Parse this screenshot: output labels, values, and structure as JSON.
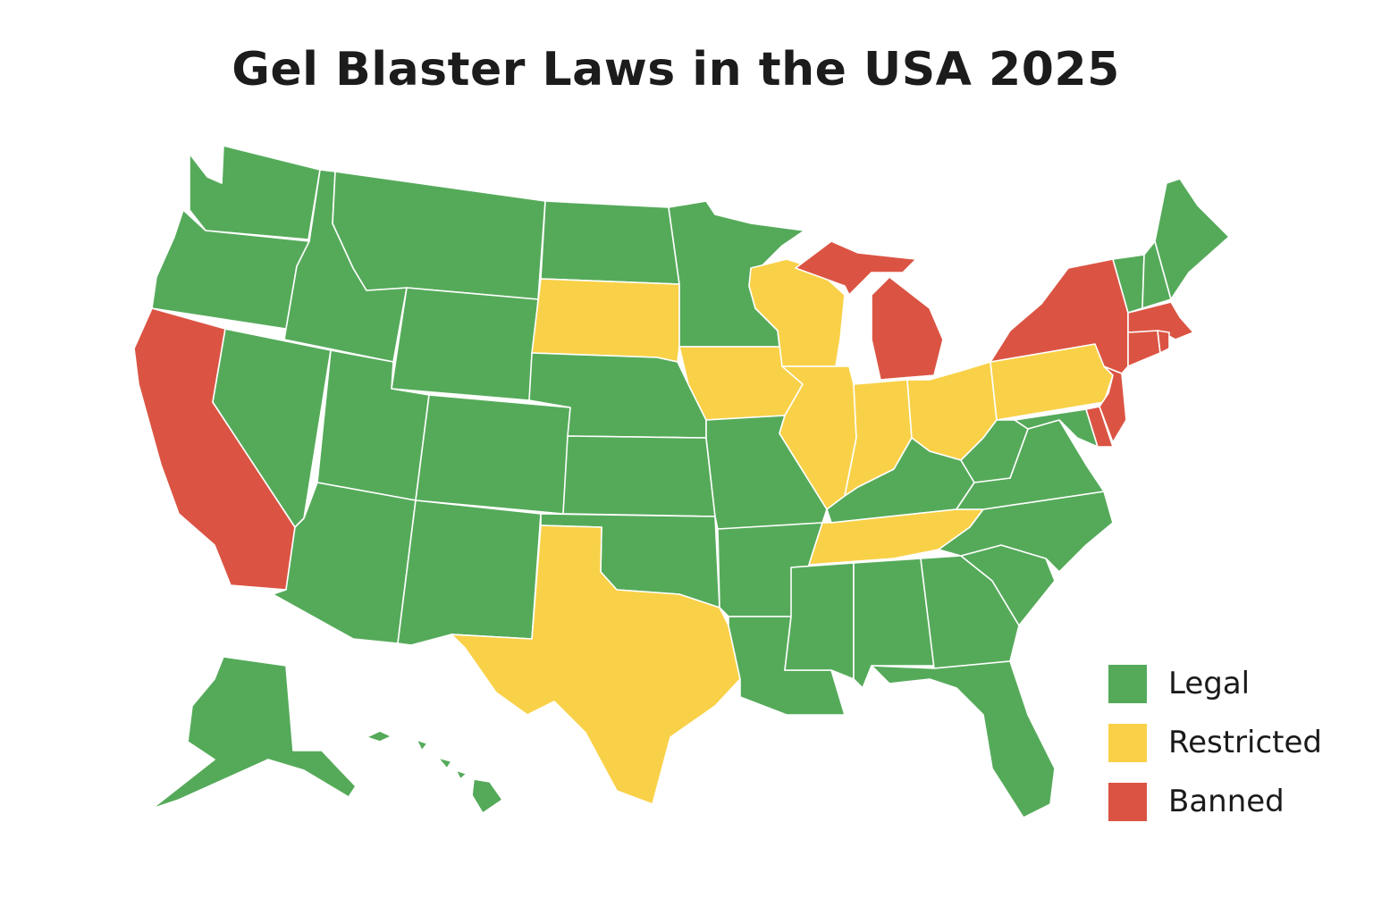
{
  "title": "Gel Blaster Laws in the USA 2025",
  "colors": {
    "Legal": "#55aa5a",
    "Restricted": "#f9d148",
    "Banned": "#db5443"
  },
  "legend": [
    {
      "label": "Legal",
      "status": "Legal"
    },
    {
      "label": "Restricted",
      "status": "Restricted"
    },
    {
      "label": "Banned",
      "status": "Banned"
    }
  ],
  "states": {
    "WA": "Legal",
    "OR": "Legal",
    "CA": "Banned",
    "NV": "Legal",
    "ID": "Legal",
    "MT": "Legal",
    "WY": "Legal",
    "UT": "Legal",
    "CO": "Legal",
    "AZ": "Legal",
    "NM": "Legal",
    "ND": "Legal",
    "SD": "Restricted",
    "NE": "Legal",
    "KS": "Legal",
    "OK": "Legal",
    "TX": "Restricted",
    "MN": "Legal",
    "IA": "Restricted",
    "MO": "Legal",
    "AR": "Legal",
    "LA": "Legal",
    "WI": "Restricted",
    "IL": "Restricted",
    "MI": "Banned",
    "IN": "Restricted",
    "OH": "Restricted",
    "KY": "Legal",
    "TN": "Restricted",
    "MS": "Legal",
    "AL": "Legal",
    "GA": "Legal",
    "FL": "Legal",
    "SC": "Legal",
    "NC": "Legal",
    "VA": "Legal",
    "WV": "Legal",
    "PA": "Restricted",
    "MD": "Legal",
    "DE": "Banned",
    "NJ": "Banned",
    "NY": "Banned",
    "VT": "Legal",
    "NH": "Legal",
    "ME": "Legal",
    "MA": "Banned",
    "CT": "Banned",
    "RI": "Banned",
    "AK": "Legal",
    "HI": "Legal"
  }
}
